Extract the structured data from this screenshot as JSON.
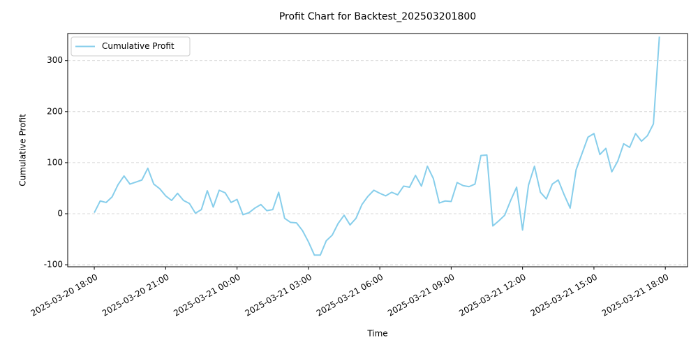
{
  "chart_data": {
    "type": "line",
    "title": "Profit Chart for Backtest_202503201800",
    "x_label": "Time",
    "y_label": "Cumulative Profit",
    "x": [
      "2025-03-20 18:00",
      "2025-03-20 18:15",
      "2025-03-20 18:30",
      "2025-03-20 18:45",
      "2025-03-20 19:00",
      "2025-03-20 19:15",
      "2025-03-20 19:30",
      "2025-03-20 19:45",
      "2025-03-20 20:00",
      "2025-03-20 20:15",
      "2025-03-20 20:30",
      "2025-03-20 20:45",
      "2025-03-20 21:00",
      "2025-03-20 21:15",
      "2025-03-20 21:30",
      "2025-03-20 21:45",
      "2025-03-20 22:00",
      "2025-03-20 22:15",
      "2025-03-20 22:30",
      "2025-03-20 22:45",
      "2025-03-20 23:00",
      "2025-03-20 23:15",
      "2025-03-20 23:30",
      "2025-03-20 23:45",
      "2025-03-21 00:00",
      "2025-03-21 00:15",
      "2025-03-21 00:30",
      "2025-03-21 00:45",
      "2025-03-21 01:00",
      "2025-03-21 01:15",
      "2025-03-21 01:30",
      "2025-03-21 01:45",
      "2025-03-21 02:00",
      "2025-03-21 02:15",
      "2025-03-21 02:30",
      "2025-03-21 02:45",
      "2025-03-21 03:00",
      "2025-03-21 03:15",
      "2025-03-21 03:30",
      "2025-03-21 03:45",
      "2025-03-21 04:00",
      "2025-03-21 04:15",
      "2025-03-21 04:30",
      "2025-03-21 04:45",
      "2025-03-21 05:00",
      "2025-03-21 05:15",
      "2025-03-21 05:30",
      "2025-03-21 05:45",
      "2025-03-21 06:00",
      "2025-03-21 06:15",
      "2025-03-21 06:30",
      "2025-03-21 06:45",
      "2025-03-21 07:00",
      "2025-03-21 07:15",
      "2025-03-21 07:30",
      "2025-03-21 07:45",
      "2025-03-21 08:00",
      "2025-03-21 08:15",
      "2025-03-21 08:30",
      "2025-03-21 08:45",
      "2025-03-21 09:00",
      "2025-03-21 09:15",
      "2025-03-21 09:30",
      "2025-03-21 09:45",
      "2025-03-21 10:00",
      "2025-03-21 10:15",
      "2025-03-21 10:30",
      "2025-03-21 10:45",
      "2025-03-21 11:00",
      "2025-03-21 11:15",
      "2025-03-21 11:30",
      "2025-03-21 11:45",
      "2025-03-21 12:00",
      "2025-03-21 12:15",
      "2025-03-21 12:30",
      "2025-03-21 12:45",
      "2025-03-21 13:00",
      "2025-03-21 13:15",
      "2025-03-21 13:30",
      "2025-03-21 13:45",
      "2025-03-21 14:00",
      "2025-03-21 14:15",
      "2025-03-21 14:30",
      "2025-03-21 14:45",
      "2025-03-21 15:00",
      "2025-03-21 15:15",
      "2025-03-21 15:30",
      "2025-03-21 15:45",
      "2025-03-21 16:00",
      "2025-03-21 16:15",
      "2025-03-21 16:30",
      "2025-03-21 16:45",
      "2025-03-21 17:00",
      "2025-03-21 17:15",
      "2025-03-21 17:30",
      "2025-03-21 17:45"
    ],
    "series": [
      {
        "name": "Cumulative Profit",
        "color": "#87ceeb",
        "values": [
          2,
          25,
          22,
          33,
          57,
          74,
          58,
          62,
          66,
          89,
          58,
          49,
          35,
          26,
          40,
          26,
          20,
          1,
          8,
          45,
          13,
          46,
          41,
          22,
          28,
          -2,
          2,
          11,
          18,
          6,
          8,
          42,
          -9,
          -17,
          -18,
          -33,
          -55,
          -81,
          -81,
          -53,
          -42,
          -19,
          -3,
          -22,
          -9,
          18,
          34,
          46,
          40,
          35,
          42,
          37,
          54,
          52,
          75,
          54,
          93,
          69,
          21,
          25,
          24,
          61,
          55,
          53,
          58,
          114,
          115,
          -24,
          -14,
          -3,
          26,
          52,
          -32,
          56,
          93,
          42,
          29,
          58,
          66,
          37,
          11,
          86,
          118,
          150,
          157,
          116,
          128,
          82,
          103,
          137,
          130,
          157,
          142,
          153,
          176,
          347
        ]
      }
    ],
    "xlim": [
      "2025-03-20 16:53",
      "2025-03-21 18:56"
    ],
    "xticks": [
      "2025-03-20 18:00",
      "2025-03-20 21:00",
      "2025-03-21 00:00",
      "2025-03-21 03:00",
      "2025-03-21 06:00",
      "2025-03-21 09:00",
      "2025-03-21 12:00",
      "2025-03-21 15:00",
      "2025-03-21 18:00"
    ],
    "ylim": [
      -104,
      353
    ],
    "yticks": [
      -100,
      0,
      100,
      200,
      300
    ],
    "grid": true,
    "legend": "upper left"
  }
}
